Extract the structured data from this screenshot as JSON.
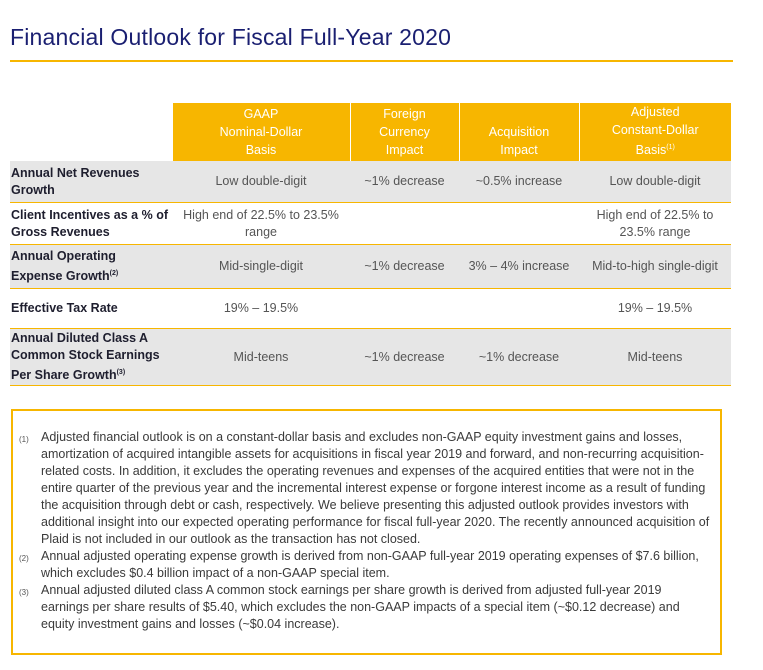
{
  "title": "Financial Outlook for Fiscal Full-Year 2020",
  "columns": [
    "GAAP Nominal-Dollar Basis",
    "Foreign Currency Impact",
    "Acquisition Impact",
    "Adjusted Constant-Dollar Basis"
  ],
  "column_lines": [
    [
      "GAAP",
      "Nominal-Dollar",
      "Basis"
    ],
    [
      "Foreign",
      "Currency",
      "Impact"
    ],
    [
      "Acquisition",
      "Impact"
    ],
    [
      "Adjusted",
      "Constant-Dollar",
      "Basis"
    ]
  ],
  "column_footnote_marker": "(1)",
  "rows": [
    {
      "label": "Annual Net Revenues Growth",
      "footnote": "",
      "cells": [
        "Low double-digit",
        "~1% decrease",
        "~0.5% increase",
        "Low double-digit"
      ]
    },
    {
      "label": "Client Incentives as a % of Gross Revenues",
      "footnote": "",
      "cells": [
        "High end of 22.5% to 23.5% range",
        "",
        "",
        "High end of 22.5% to 23.5% range"
      ]
    },
    {
      "label": "Annual Operating Expense Growth",
      "footnote": "(2)",
      "cells": [
        "Mid-single-digit",
        "~1% decrease",
        "3% – 4% increase",
        "Mid-to-high single-digit"
      ]
    },
    {
      "label": "Effective Tax Rate",
      "footnote": "",
      "cells": [
        "19% – 19.5%",
        "",
        "",
        "19% – 19.5%"
      ]
    },
    {
      "label": "Annual Diluted Class A Common Stock Earnings Per Share Growth",
      "footnote": "(3)",
      "cells": [
        "Mid-teens",
        "~1% decrease",
        "~1% decrease",
        "Mid-teens"
      ]
    }
  ],
  "notes": [
    {
      "num": "(1)",
      "text": "Adjusted financial outlook is on a constant-dollar basis and excludes non-GAAP equity investment gains and losses, amortization of acquired intangible assets for acquisitions in fiscal year 2019 and forward, and non-recurring acquisition-related costs. In addition, it excludes the operating revenues and expenses of the acquired entities that were not in the entire quarter of the previous year and the incremental interest expense or forgone interest income as a result of funding the acquisition through debt or cash, respectively. We believe presenting this adjusted outlook provides investors with additional insight into our expected operating performance for fiscal full-year 2020. The recently announced acquisition of Plaid is not included in our outlook as the transaction has not closed."
    },
    {
      "num": "(2)",
      "text": "Annual adjusted operating expense growth is derived from non-GAAP full-year 2019 operating expenses of $7.6 billion, which excludes $0.4 billion impact of a non-GAAP special item."
    },
    {
      "num": "(3)",
      "text": "Annual adjusted diluted class A common stock earnings per share growth is derived from adjusted full-year 2019 earnings per share results of $5.40, which excludes the non-GAAP impacts of a special item (~$0.12 decrease) and equity investment gains and losses (~$0.04 increase)."
    }
  ]
}
